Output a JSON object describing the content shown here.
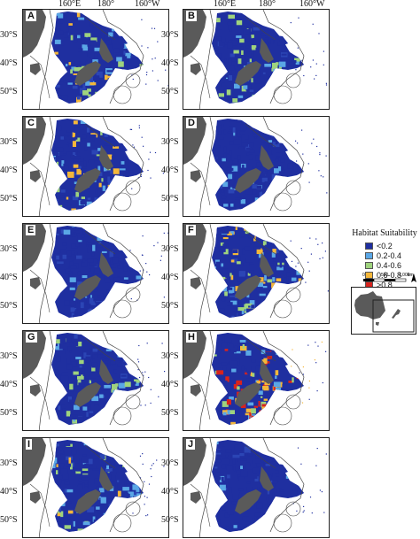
{
  "top_ticks": [
    "160°E",
    "180°",
    "160°W"
  ],
  "lat_ticks": [
    "30°S",
    "40°S",
    "50°S"
  ],
  "panels": [
    {
      "label": "A",
      "profile": "mid"
    },
    {
      "label": "B",
      "profile": "low"
    },
    {
      "label": "C",
      "profile": "mid"
    },
    {
      "label": "D",
      "profile": "verylow"
    },
    {
      "label": "E",
      "profile": "verylow"
    },
    {
      "label": "F",
      "profile": "mid"
    },
    {
      "label": "G",
      "profile": "low"
    },
    {
      "label": "H",
      "profile": "high"
    },
    {
      "label": "I",
      "profile": "mid"
    },
    {
      "label": "J",
      "profile": "verylow"
    }
  ],
  "legend": {
    "title": "Habitat Suitability",
    "items": [
      {
        "label": "<0.2",
        "color": "#1f2fa0"
      },
      {
        "label": "0.2-0.4",
        "color": "#5aa7e6"
      },
      {
        "label": "0.4-0.6",
        "color": "#9fd37e"
      },
      {
        "label": "0.6-0.8",
        "color": "#f4b73a"
      },
      {
        "label": ">0.8",
        "color": "#d8231d"
      }
    ]
  },
  "scale": {
    "labels": [
      "0",
      "500",
      "1,000"
    ],
    "unit": "km",
    "north": "N"
  },
  "colors": {
    "land": "#5a5a5a",
    "boundary": "#444444",
    "inset_box": "#222222"
  }
}
